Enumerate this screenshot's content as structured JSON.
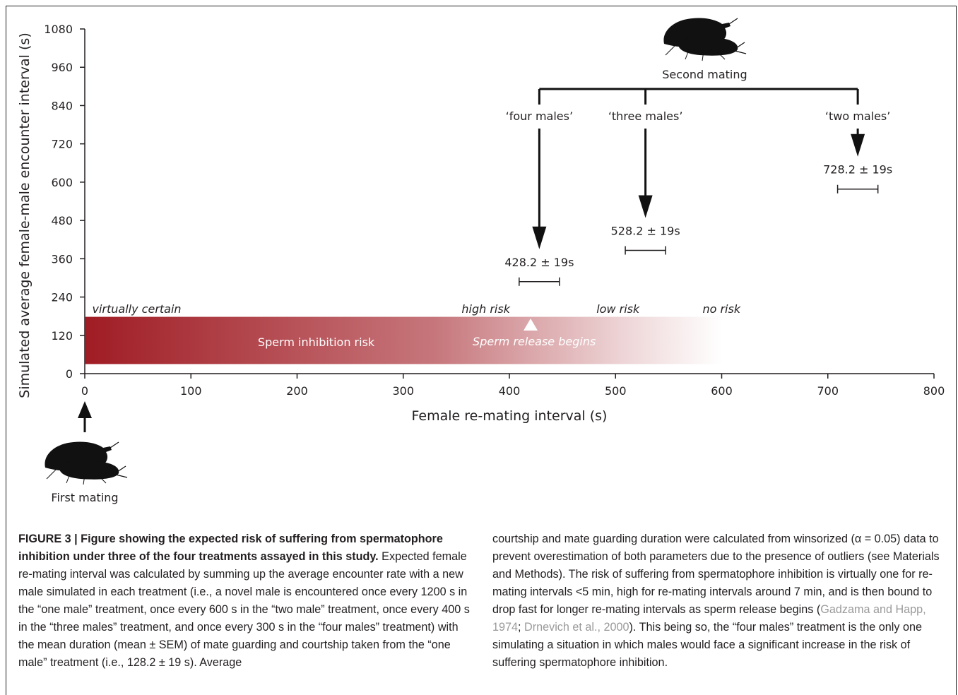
{
  "chart_data": {
    "type": "annotated-bar",
    "xlabel": "Female re-mating interval (s)",
    "ylabel": "Simulated average female-male encounter interval (s)",
    "xlim": [
      0,
      800
    ],
    "ylim": [
      0,
      1080
    ],
    "x_ticks": [
      "0",
      "100",
      "200",
      "300",
      "400",
      "500",
      "600",
      "700",
      "800"
    ],
    "y_ticks": [
      "0",
      "120",
      "240",
      "360",
      "480",
      "600",
      "720",
      "840",
      "960",
      "1080"
    ],
    "risk_band": {
      "x_start": 0,
      "x_end": 600,
      "y_bottom": 30,
      "y_top": 178,
      "label": "Sperm inhibition risk",
      "color_strong": "#a01c24",
      "zone_labels": [
        {
          "text": "virtually certain",
          "x": 7
        },
        {
          "text": "high risk",
          "x": 355
        },
        {
          "text": "low risk",
          "x": 482
        },
        {
          "text": "no risk",
          "x": 582
        }
      ],
      "marker": {
        "x": 420,
        "label": "Sperm release begins"
      }
    },
    "second_mating": {
      "label": "Second mating",
      "x": 584,
      "branches": [
        {
          "label": "‘four males’",
          "x": 428.2,
          "value_label": "428.2 ± 19s",
          "arrow_tip_y": 390
        },
        {
          "label": "‘three males’",
          "x": 528.2,
          "value_label": "528.2 ± 19s",
          "arrow_tip_y": 488
        },
        {
          "label": "‘two males’",
          "x": 728.2,
          "value_label": "728.2 ± 19s",
          "arrow_tip_y": 680
        }
      ],
      "error_bar": 19
    },
    "first_mating": {
      "label": "First mating",
      "x": 0
    }
  },
  "caption": {
    "title": "FIGURE 3 | Figure showing the expected risk of suffering from spermatophore inhibition under three of the four treatments assayed in this study.",
    "left_body": "Expected female re-mating interval was calculated by summing up the average encounter rate with a new male simulated in each treatment (i.e., a novel male is encountered once every 1200 s in the “one male” treatment, once every 600 s in the “two male” treatment, once every 400 s in the “three males” treatment, and once every 300 s in the “four males” treatment) with the mean duration (mean ± SEM) of mate guarding and courtship taken from the “one male” treatment (i.e., 128.2 ± 19 s). Average",
    "right_part1": "courtship and mate guarding duration were calculated from winsorized (α = 0.05) data to prevent overestimation of both parameters due to the presence of outliers (see Materials and Methods). The risk of suffering from spermatophore inhibition is virtually one for re-mating intervals <5 min, high for re-mating intervals around 7 min, and is then bound to drop fast for longer re-mating intervals as sperm release begins (",
    "ref1": "Gadzama and Happ, 1974",
    "sep": "; ",
    "ref2": "Drnevich et al., 2000",
    "right_part2": "). This being so, the “four males” treatment is the only one simulating a situation in which males would face a significant increase in the risk of suffering spermatophore inhibition."
  }
}
